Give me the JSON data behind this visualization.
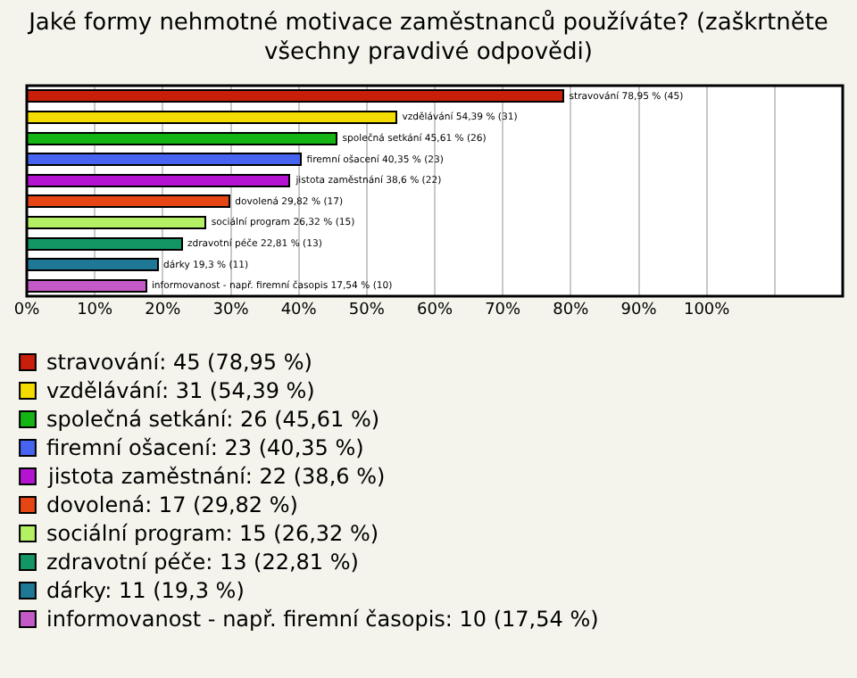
{
  "chart_data": {
    "type": "bar",
    "orientation": "horizontal",
    "stacked": true,
    "title": "Jaké formy nehmotné motivace zaměstnanců používáte? (zaškrtněte všechny pravdivé odpovědi)",
    "categories": [
      null,
      null,
      null,
      null,
      null,
      null,
      null,
      null,
      null,
      null
    ],
    "series": [
      {
        "name": "stravování: 45 (78,95 %)",
        "color": "#c81e0a",
        "values": [
          78.95,
          null,
          null,
          null,
          null,
          null,
          null,
          null,
          null,
          null
        ],
        "value_labels": [
          "stravování 78,95 % (45)",
          null,
          null,
          null,
          null,
          null,
          null,
          null,
          null,
          null
        ]
      },
      {
        "name": "vzdělávání: 31 (54,39 %)",
        "color": "#f5dc00",
        "values": [
          null,
          54.39,
          null,
          null,
          null,
          null,
          null,
          null,
          null,
          null
        ],
        "value_labels": [
          null,
          "vzdělávání 54,39 % (31)",
          null,
          null,
          null,
          null,
          null,
          null,
          null,
          null
        ]
      },
      {
        "name": "společná setkání: 26 (45,61 %)",
        "color": "#14b414",
        "values": [
          null,
          null,
          45.61,
          null,
          null,
          null,
          null,
          null,
          null,
          null
        ],
        "value_labels": [
          null,
          null,
          "společná setkání 45,61 % (26)",
          null,
          null,
          null,
          null,
          null,
          null,
          null
        ]
      },
      {
        "name": "firemní ošacení: 23 (40,35 %)",
        "color": "#4664f0",
        "values": [
          null,
          null,
          null,
          40.35,
          null,
          null,
          null,
          null,
          null,
          null
        ],
        "value_labels": [
          null,
          null,
          null,
          "firemní ošacení 40,35 % (23)",
          null,
          null,
          null,
          null,
          null,
          null
        ]
      },
      {
        "name": "jistota zaměstnání: 22 (38,6 %)",
        "color": "#b414d2",
        "values": [
          null,
          null,
          null,
          null,
          38.6,
          null,
          null,
          null,
          null,
          null
        ],
        "value_labels": [
          null,
          null,
          null,
          null,
          "jistota zaměstnání 38,6 % (22)",
          null,
          null,
          null,
          null,
          null
        ]
      },
      {
        "name": "dovolená: 17 (29,82 %)",
        "color": "#e64614",
        "values": [
          null,
          null,
          null,
          null,
          null,
          29.82,
          null,
          null,
          null,
          null
        ],
        "value_labels": [
          null,
          null,
          null,
          null,
          null,
          "dovolená 29,82 % (17)",
          null,
          null,
          null,
          null
        ]
      },
      {
        "name": "sociální program: 15 (26,32 %)",
        "color": "#b4f064",
        "values": [
          null,
          null,
          null,
          null,
          null,
          null,
          26.32,
          null,
          null,
          null
        ],
        "value_labels": [
          null,
          null,
          null,
          null,
          null,
          null,
          "sociální program 26,32 % (15)",
          null,
          null,
          null
        ]
      },
      {
        "name": "zdravotní péče: 13 (22,81 %)",
        "color": "#149664",
        "values": [
          null,
          null,
          null,
          null,
          null,
          null,
          null,
          22.81,
          null,
          null
        ],
        "value_labels": [
          null,
          null,
          null,
          null,
          null,
          null,
          null,
          "zdravotní péče 22,81 % (13)",
          null,
          null
        ]
      },
      {
        "name": "dárky: 11 (19,3 %)",
        "color": "#1e7896",
        "values": [
          null,
          null,
          null,
          null,
          null,
          null,
          null,
          null,
          19.3,
          null
        ],
        "value_labels": [
          null,
          null,
          null,
          null,
          null,
          null,
          null,
          null,
          "dárky 19,3 % (11)",
          null
        ]
      },
      {
        "name": "informovanost - např. firemní časopis: 10 (17,54 %)",
        "color": "#c35ac8",
        "values": [
          null,
          null,
          null,
          null,
          null,
          null,
          null,
          null,
          null,
          17.54
        ],
        "value_labels": [
          null,
          null,
          null,
          null,
          null,
          null,
          null,
          null,
          null,
          "informovanost - např. firemní časopis 17,54 % (10)"
        ]
      }
    ],
    "xlim": [
      0,
      120
    ],
    "xticks": [
      {
        "value": 0,
        "label": "0%"
      },
      {
        "value": 10,
        "label": "10%"
      },
      {
        "value": 20,
        "label": "20%"
      },
      {
        "value": 30,
        "label": "30%"
      },
      {
        "value": 40,
        "label": "40%"
      },
      {
        "value": 50,
        "label": "50%"
      },
      {
        "value": 60,
        "label": "60%"
      },
      {
        "value": 70,
        "label": "70%"
      },
      {
        "value": 80,
        "label": "80%"
      },
      {
        "value": 90,
        "label": "90%"
      },
      {
        "value": 100,
        "label": "100%"
      },
      {
        "value": 110,
        "label": null
      }
    ],
    "grid": "x",
    "legend": "bottom"
  }
}
